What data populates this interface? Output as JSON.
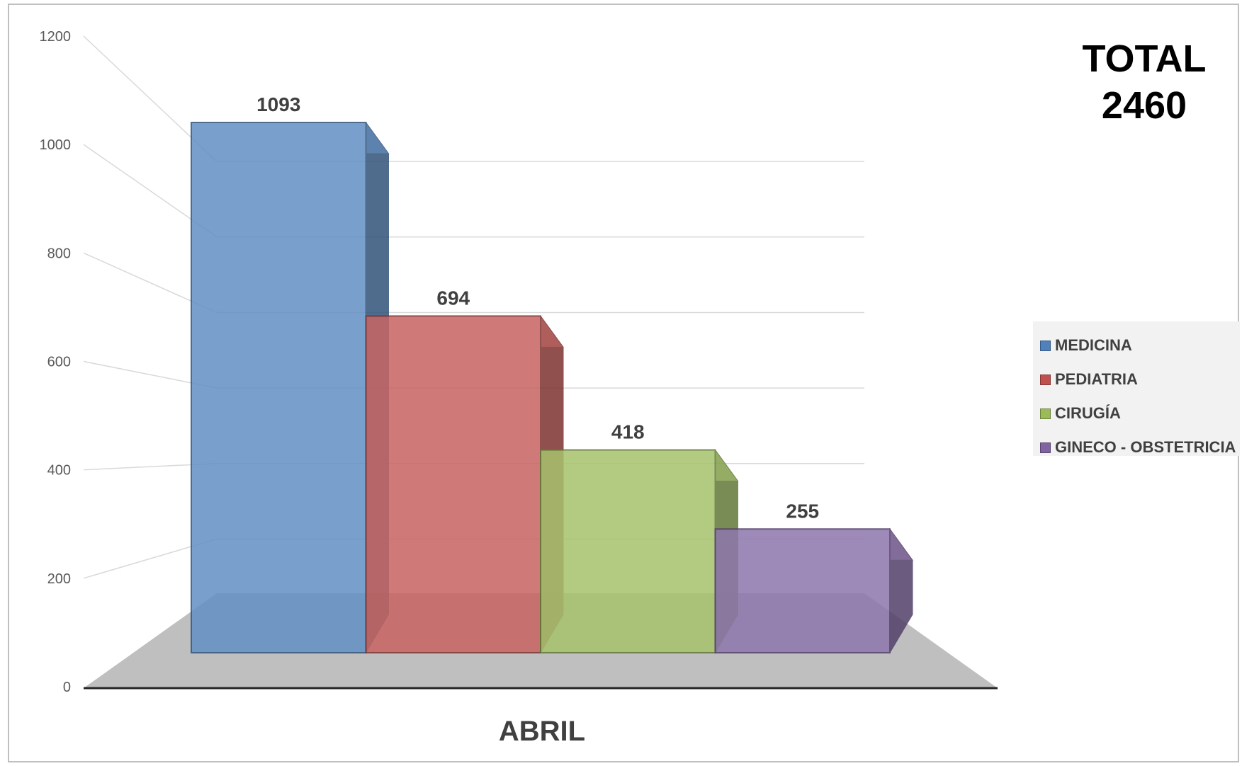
{
  "chart_data": {
    "type": "bar",
    "title": "",
    "categories": [
      "ABRIL"
    ],
    "series": [
      {
        "name": "MEDICINA",
        "values": [
          1093
        ],
        "color": "#4f81bd"
      },
      {
        "name": "PEDIATRIA",
        "values": [
          694
        ],
        "color": "#c0504d"
      },
      {
        "name": "CIRUGÍA",
        "values": [
          418
        ],
        "color": "#9bbb59"
      },
      {
        "name": "GINECO - OBSTETRICIA",
        "values": [
          255
        ],
        "color": "#8064a2"
      }
    ],
    "y_ticks": [
      "0",
      "200",
      "400",
      "600",
      "800",
      "1000",
      "1200"
    ],
    "ylim": [
      0,
      1200
    ],
    "xlabel": "",
    "ylabel": "",
    "grid": true,
    "legend_position": "right",
    "style": "3d-column"
  },
  "total": {
    "label": "TOTAL",
    "value": "2460"
  }
}
